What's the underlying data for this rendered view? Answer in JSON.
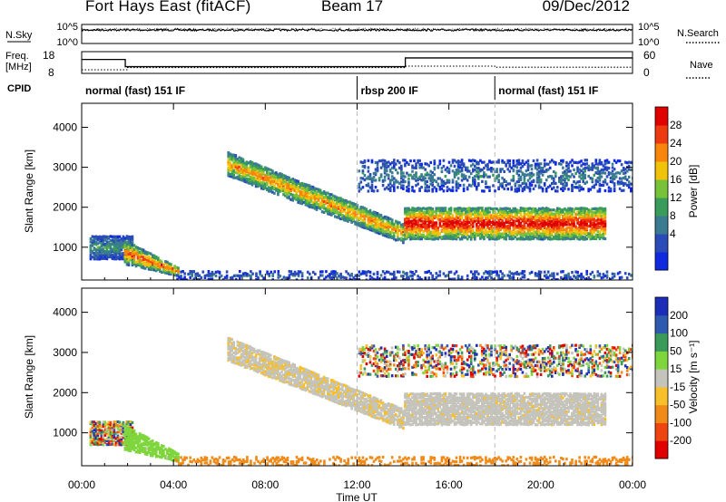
{
  "header": {
    "title": "Fort Hays East (fitACF)",
    "beam": "Beam 17",
    "date": "09/Dec/2012"
  },
  "nsky_panel": {
    "left_label": "N.Sky",
    "right_label": "N.Search",
    "left_ticks": [
      "10^5",
      "10^0"
    ],
    "right_ticks": [
      "10^5",
      "10^0"
    ]
  },
  "freq_panel": {
    "left_label_1": "Freq.",
    "left_label_2": "[MHz]",
    "right_label": "Nave",
    "cpid_label": "CPID",
    "left_ticks": [
      "18",
      "8"
    ],
    "right_ticks": [
      "60",
      "0"
    ],
    "freq_steps": [
      [
        0,
        14.4
      ],
      [
        1.9,
        11.1
      ],
      [
        14.1,
        15.1
      ],
      [
        24,
        15.1
      ]
    ],
    "freq_range": [
      8,
      18
    ],
    "nave_steps": [
      [
        0,
        10
      ],
      [
        2,
        16
      ],
      [
        14.1,
        20
      ],
      [
        18,
        17
      ],
      [
        24,
        17
      ]
    ],
    "nave_range": [
      0,
      60
    ]
  },
  "cpid": [
    {
      "label": "normal (fast) 151 IF",
      "start": 0
    },
    {
      "label": "rbsp 200 IF",
      "start": 12
    },
    {
      "label": "normal (fast) 151 IF",
      "start": 18
    }
  ],
  "x_axis": {
    "title": "Time UT",
    "range": [
      0,
      24
    ],
    "ticks": [
      0,
      4,
      8,
      12,
      16,
      20,
      24
    ],
    "tick_labels": [
      "00:00",
      "04:00",
      "08:00",
      "12:00",
      "16:00",
      "20:00",
      "00:00"
    ]
  },
  "panels": [
    {
      "ylabel": "Slant Range [km]",
      "yticks": [
        1000,
        2000,
        3000,
        4000
      ],
      "yrange": [
        180,
        4600
      ],
      "colorbar_title": "Power [dB]",
      "colorbar_ticks": [
        "28",
        "24",
        "20",
        "16",
        "12",
        "8",
        "4"
      ],
      "colors": [
        "#0f2adf",
        "#2b4bb8",
        "#3a7b92",
        "#3a9c5a",
        "#78c23a",
        "#f1c20a",
        "#f8860c",
        "#ee3a10",
        "#e00000"
      ]
    },
    {
      "ylabel": "Slant Range [km]",
      "yticks": [
        1000,
        2000,
        3000,
        4000
      ],
      "yrange": [
        180,
        4600
      ],
      "colorbar_title": "Velocity [m s⁻¹]",
      "colorbar_ticks": [
        "200",
        "100",
        "50",
        "15",
        "-15",
        "-50",
        "-100",
        "-200"
      ],
      "colors": [
        "#e00000",
        "#ee4510",
        "#f08a18",
        "#f7c02a",
        "#c4c4bc",
        "#7ed63c",
        "#3a9a5a",
        "#2e5ab0",
        "#1c2eb8"
      ]
    }
  ],
  "chart_data": {
    "type": "heatmap",
    "x_units": "hours UT",
    "y_units": "slant range km",
    "echo_regions": [
      {
        "name": "early near-range patch",
        "t": [
          0.3,
          2.2
        ],
        "range_km": [
          700,
          1300
        ],
        "power_db": 10,
        "velocity": "mixed"
      },
      {
        "name": "early descending band",
        "t": [
          1.8,
          4.2
        ],
        "range_km": [
          280,
          1200
        ],
        "power_db": 22,
        "velocity": 30
      },
      {
        "name": "evening band",
        "t": [
          6.3,
          14.0
        ],
        "range_km_start": [
          2800,
          3400
        ],
        "range_km_end": [
          1100,
          1600
        ],
        "power_db": 20,
        "velocity": -10
      },
      {
        "name": "main rbsp band",
        "t": [
          14.0,
          22.8
        ],
        "range_km": [
          1200,
          2000
        ],
        "power_db": 26,
        "velocity": -5
      },
      {
        "name": "upper diffuse band",
        "t": [
          12.0,
          24.0
        ],
        "range_km": [
          2400,
          3200
        ],
        "power_db": 8,
        "velocity": "mixed"
      },
      {
        "name": "near-range ground scatter",
        "t": [
          4.0,
          24.0
        ],
        "range_km": [
          180,
          420
        ],
        "power_db": 6,
        "velocity": -70
      }
    ]
  }
}
